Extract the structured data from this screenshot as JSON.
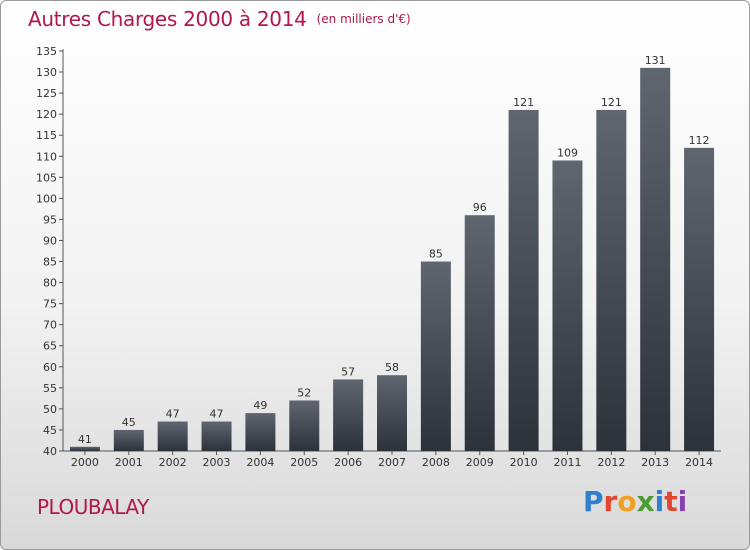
{
  "header": {
    "title": "Autres Charges 2000 à 2014",
    "unit": "(en milliers d'€)"
  },
  "commune": "PLOUBALAY",
  "logo": "Proxiti",
  "colors": {
    "title": "#b0174b",
    "bar_top": "#5f6670",
    "bar_bottom": "#2c323a"
  },
  "chart_data": {
    "type": "bar",
    "title": "Autres Charges 2000 à 2014",
    "subtitle": "(en milliers d'€)",
    "categories": [
      "2000",
      "2001",
      "2002",
      "2003",
      "2004",
      "2005",
      "2006",
      "2007",
      "2008",
      "2009",
      "2010",
      "2011",
      "2012",
      "2013",
      "2014"
    ],
    "values": [
      41,
      45,
      47,
      47,
      49,
      52,
      57,
      58,
      85,
      96,
      121,
      109,
      121,
      131,
      112
    ],
    "ylim": [
      40,
      135
    ],
    "yticks": [
      40,
      45,
      50,
      55,
      60,
      65,
      70,
      75,
      80,
      85,
      90,
      95,
      100,
      105,
      110,
      115,
      120,
      125,
      130,
      135
    ],
    "grid": false,
    "legend": "none"
  }
}
